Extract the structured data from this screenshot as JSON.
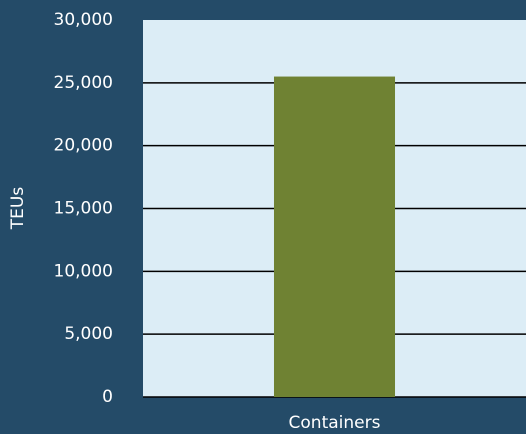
{
  "chart_data": {
    "type": "bar",
    "y_label": "TEUs",
    "categories": [
      "Containers"
    ],
    "values": [
      25500
    ],
    "color": "#6f8233",
    "ylim": [
      0,
      30000
    ],
    "yticks": [
      0,
      {
        "value": 5000,
        "label": "5,000"
      },
      {
        "value": 10000,
        "label": "10,000"
      },
      {
        "value": 15000,
        "label": "15,000"
      },
      {
        "value": 20000,
        "label": "20,000"
      },
      {
        "value": 25000,
        "label": "25,000"
      },
      {
        "value": 30000,
        "label": "30,000"
      }
    ],
    "grid": true
  }
}
